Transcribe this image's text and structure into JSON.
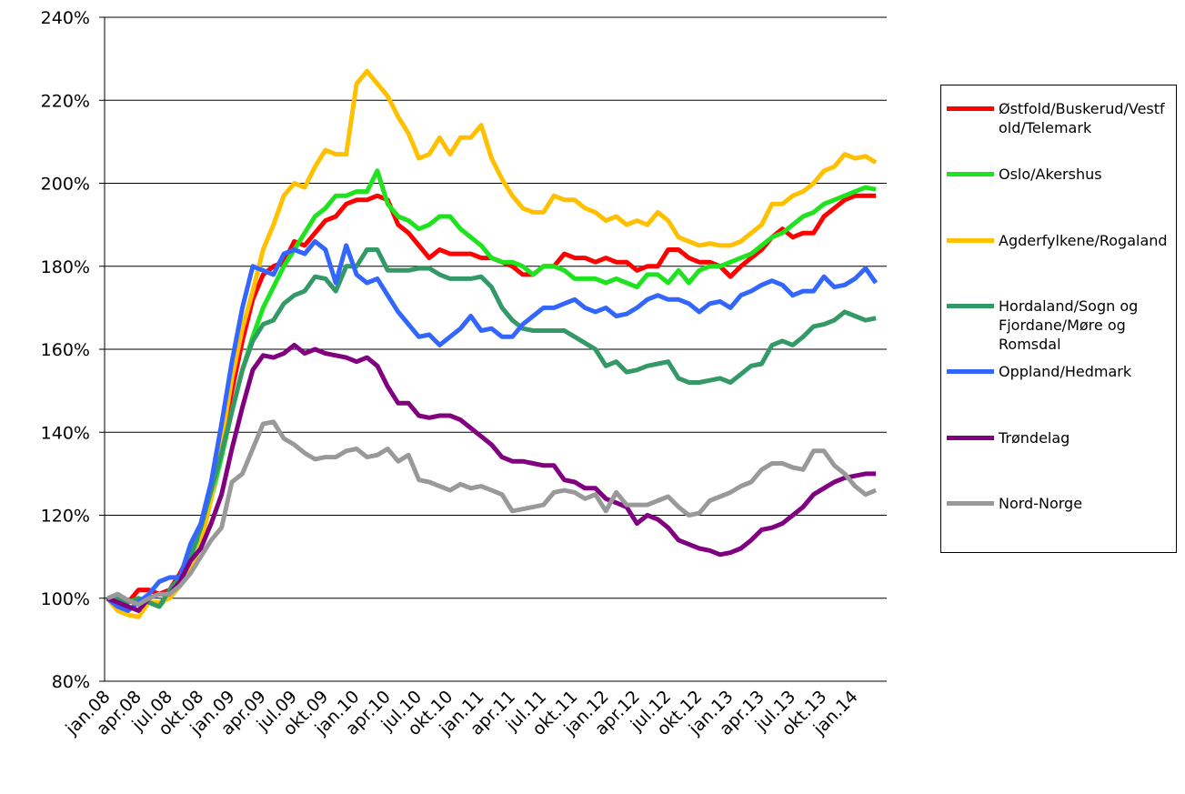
{
  "chart_data": {
    "type": "line",
    "categories": [
      "jan.08",
      null,
      null,
      "apr.08",
      null,
      null,
      "jul.08",
      null,
      null,
      "okt.08",
      null,
      null,
      "jan.09",
      null,
      null,
      "apr.09",
      null,
      null,
      "jul.09",
      null,
      null,
      "okt.09",
      null,
      null,
      "jan.10",
      null,
      null,
      "apr.10",
      null,
      null,
      "jul.10",
      null,
      null,
      "okt.10",
      null,
      null,
      "jan.11",
      null,
      null,
      "apr.11",
      null,
      null,
      "jul.11",
      null,
      null,
      "okt.11",
      null,
      null,
      "jan.12",
      null,
      null,
      "apr.12",
      null,
      null,
      "jul.12",
      null,
      null,
      "okt.12",
      null,
      null,
      "jan.13",
      null,
      null,
      "apr.13",
      null,
      null,
      "jul.13",
      null,
      null,
      "okt.13",
      null,
      null,
      "jan.14",
      null,
      null
    ],
    "ylim": [
      80,
      240
    ],
    "yticks": [
      {
        "value": 80,
        "label": "80%"
      },
      {
        "value": 100,
        "label": "100%"
      },
      {
        "value": 120,
        "label": "120%"
      },
      {
        "value": 140,
        "label": "140%"
      },
      {
        "value": 160,
        "label": "160%"
      },
      {
        "value": 180,
        "label": "180%"
      },
      {
        "value": 200,
        "label": "200%"
      },
      {
        "value": 220,
        "label": "220%"
      },
      {
        "value": 240,
        "label": "240%"
      }
    ],
    "grid": true,
    "legend": "right",
    "series": [
      {
        "name": "Østfold/Buskerud/Vestfold/Telemark",
        "color": "#ff0000",
        "values": [
          100,
          99,
          99,
          102,
          102,
          101,
          102,
          106,
          111,
          117,
          125,
          137,
          150,
          162,
          172,
          178,
          180,
          181,
          186,
          185,
          188,
          191,
          192,
          195,
          196,
          196,
          197,
          196,
          190,
          188,
          185,
          182,
          184,
          183,
          183,
          183,
          182,
          182,
          181,
          180,
          178,
          178,
          180,
          180,
          183,
          182,
          182,
          181,
          182,
          181,
          181,
          179,
          180,
          180,
          184,
          184,
          182,
          181,
          181,
          180,
          177.5,
          180,
          182,
          184,
          187,
          189,
          187,
          188,
          188,
          192,
          194,
          196,
          197,
          197,
          197
        ]
      },
      {
        "name": "Oslo/Akershus",
        "color": "#1ee31e",
        "values": [
          100,
          100,
          99,
          100,
          99,
          98,
          101,
          105,
          110,
          116,
          124,
          134,
          145,
          155,
          163,
          170,
          175,
          180,
          184,
          188,
          192,
          194,
          197,
          197,
          198,
          198,
          203,
          195,
          192,
          191,
          189,
          190,
          192,
          192,
          189,
          187,
          185,
          182,
          181,
          181,
          180,
          178,
          180,
          180,
          179,
          177,
          177,
          177,
          176,
          177,
          176,
          175,
          178,
          178,
          176,
          179,
          176,
          179,
          180,
          180,
          181,
          182,
          183,
          185,
          187,
          188,
          190,
          192,
          193,
          195,
          196,
          197,
          198,
          199,
          198.5
        ]
      },
      {
        "name": "Agderfylkene/Rogaland",
        "color": "#ffc000",
        "values": [
          100,
          97,
          96,
          95.5,
          99,
          99,
          100,
          103,
          107,
          113,
          124,
          138,
          153,
          165,
          174,
          184,
          190,
          197,
          200,
          199,
          204,
          208,
          207,
          207,
          224,
          227,
          224,
          221,
          216,
          212,
          206,
          207,
          211,
          207,
          211,
          211,
          214,
          206,
          201,
          197,
          194,
          193,
          193,
          197,
          196,
          196,
          194,
          193,
          191,
          192,
          190,
          191,
          190,
          193,
          191,
          187,
          186,
          185,
          185.5,
          185,
          185,
          186,
          188,
          190,
          195,
          195,
          197,
          198,
          200,
          203,
          204,
          207,
          206,
          206.5,
          205
        ]
      },
      {
        "name": "Hordaland/Sogn og Fjordane/Møre og Romsdal",
        "color": "#339966",
        "values": [
          100,
          100,
          99,
          100,
          99,
          98,
          102,
          105,
          110,
          117,
          126,
          135,
          145,
          155,
          162,
          166,
          167,
          171,
          173,
          174,
          177.5,
          177,
          174,
          180,
          180,
          184,
          184,
          179,
          179,
          179,
          179.5,
          179.5,
          178,
          177,
          177,
          177,
          177.5,
          175,
          170,
          167,
          165,
          164.5,
          164.5,
          164.5,
          164.5,
          163,
          161.5,
          160,
          156,
          157,
          154.5,
          155,
          156,
          156.5,
          157,
          153,
          152,
          152,
          152.5,
          153,
          152,
          154,
          156,
          156.5,
          161,
          162,
          161,
          163,
          165.5,
          166,
          167,
          169,
          168,
          167,
          167.5
        ]
      },
      {
        "name": "Oppland/Hedmark",
        "color": "#3366ff",
        "values": [
          100,
          98,
          97,
          99,
          101,
          104,
          105,
          105,
          113,
          118,
          128,
          142,
          157,
          170,
          180,
          179,
          178,
          183,
          184,
          183,
          186,
          184,
          176,
          185,
          178,
          176,
          177,
          173,
          169,
          166,
          163,
          163.5,
          161,
          163,
          165,
          168,
          164.5,
          165,
          163,
          163,
          166,
          168,
          170,
          170,
          171,
          172,
          170,
          169,
          170,
          168,
          168.5,
          170,
          172,
          173,
          172,
          172,
          171,
          169,
          171,
          171.5,
          170,
          173,
          174,
          175.5,
          176.5,
          175.5,
          173,
          174,
          174,
          177.5,
          175,
          175.5,
          177,
          179.5,
          176
        ]
      },
      {
        "name": "Trøndelag",
        "color": "#800080",
        "values": [
          100,
          99,
          98,
          97,
          100,
          101,
          101,
          104,
          109,
          112,
          118,
          125,
          136,
          146,
          155,
          158.5,
          158,
          159,
          161,
          159,
          160,
          159,
          158.5,
          158,
          157,
          158,
          156,
          151,
          147,
          147,
          144,
          143.5,
          144,
          144,
          143,
          141,
          139,
          137,
          134,
          133,
          133,
          132.5,
          132,
          132,
          128.5,
          128,
          126.5,
          126.5,
          124,
          123,
          122,
          118,
          120,
          119,
          117,
          114,
          113,
          112,
          111.5,
          110.5,
          111,
          112,
          114,
          116.5,
          117,
          118,
          120,
          122,
          125,
          126.5,
          128,
          129,
          129.5,
          130,
          130
        ]
      },
      {
        "name": "Nord-Norge",
        "color": "#999999",
        "values": [
          100,
          101,
          99.5,
          98.5,
          100,
          101,
          101,
          103,
          106,
          110,
          114,
          117,
          128,
          130,
          136,
          142,
          142.5,
          138.5,
          137,
          135,
          133.5,
          134,
          134,
          135.5,
          136,
          134,
          134.5,
          136,
          133,
          134.5,
          128.5,
          128,
          127,
          126,
          127.5,
          126.5,
          127,
          126,
          125,
          121,
          121.5,
          122,
          122.5,
          125.5,
          126,
          125.5,
          124,
          125,
          121,
          125.5,
          122.5,
          122.5,
          122.5,
          123.5,
          124.5,
          122,
          120,
          120.5,
          123.5,
          124.5,
          125.5,
          127,
          128,
          131,
          132.5,
          132.5,
          131.5,
          131,
          135.5,
          135.5,
          132,
          130,
          127,
          125,
          126
        ]
      }
    ]
  }
}
